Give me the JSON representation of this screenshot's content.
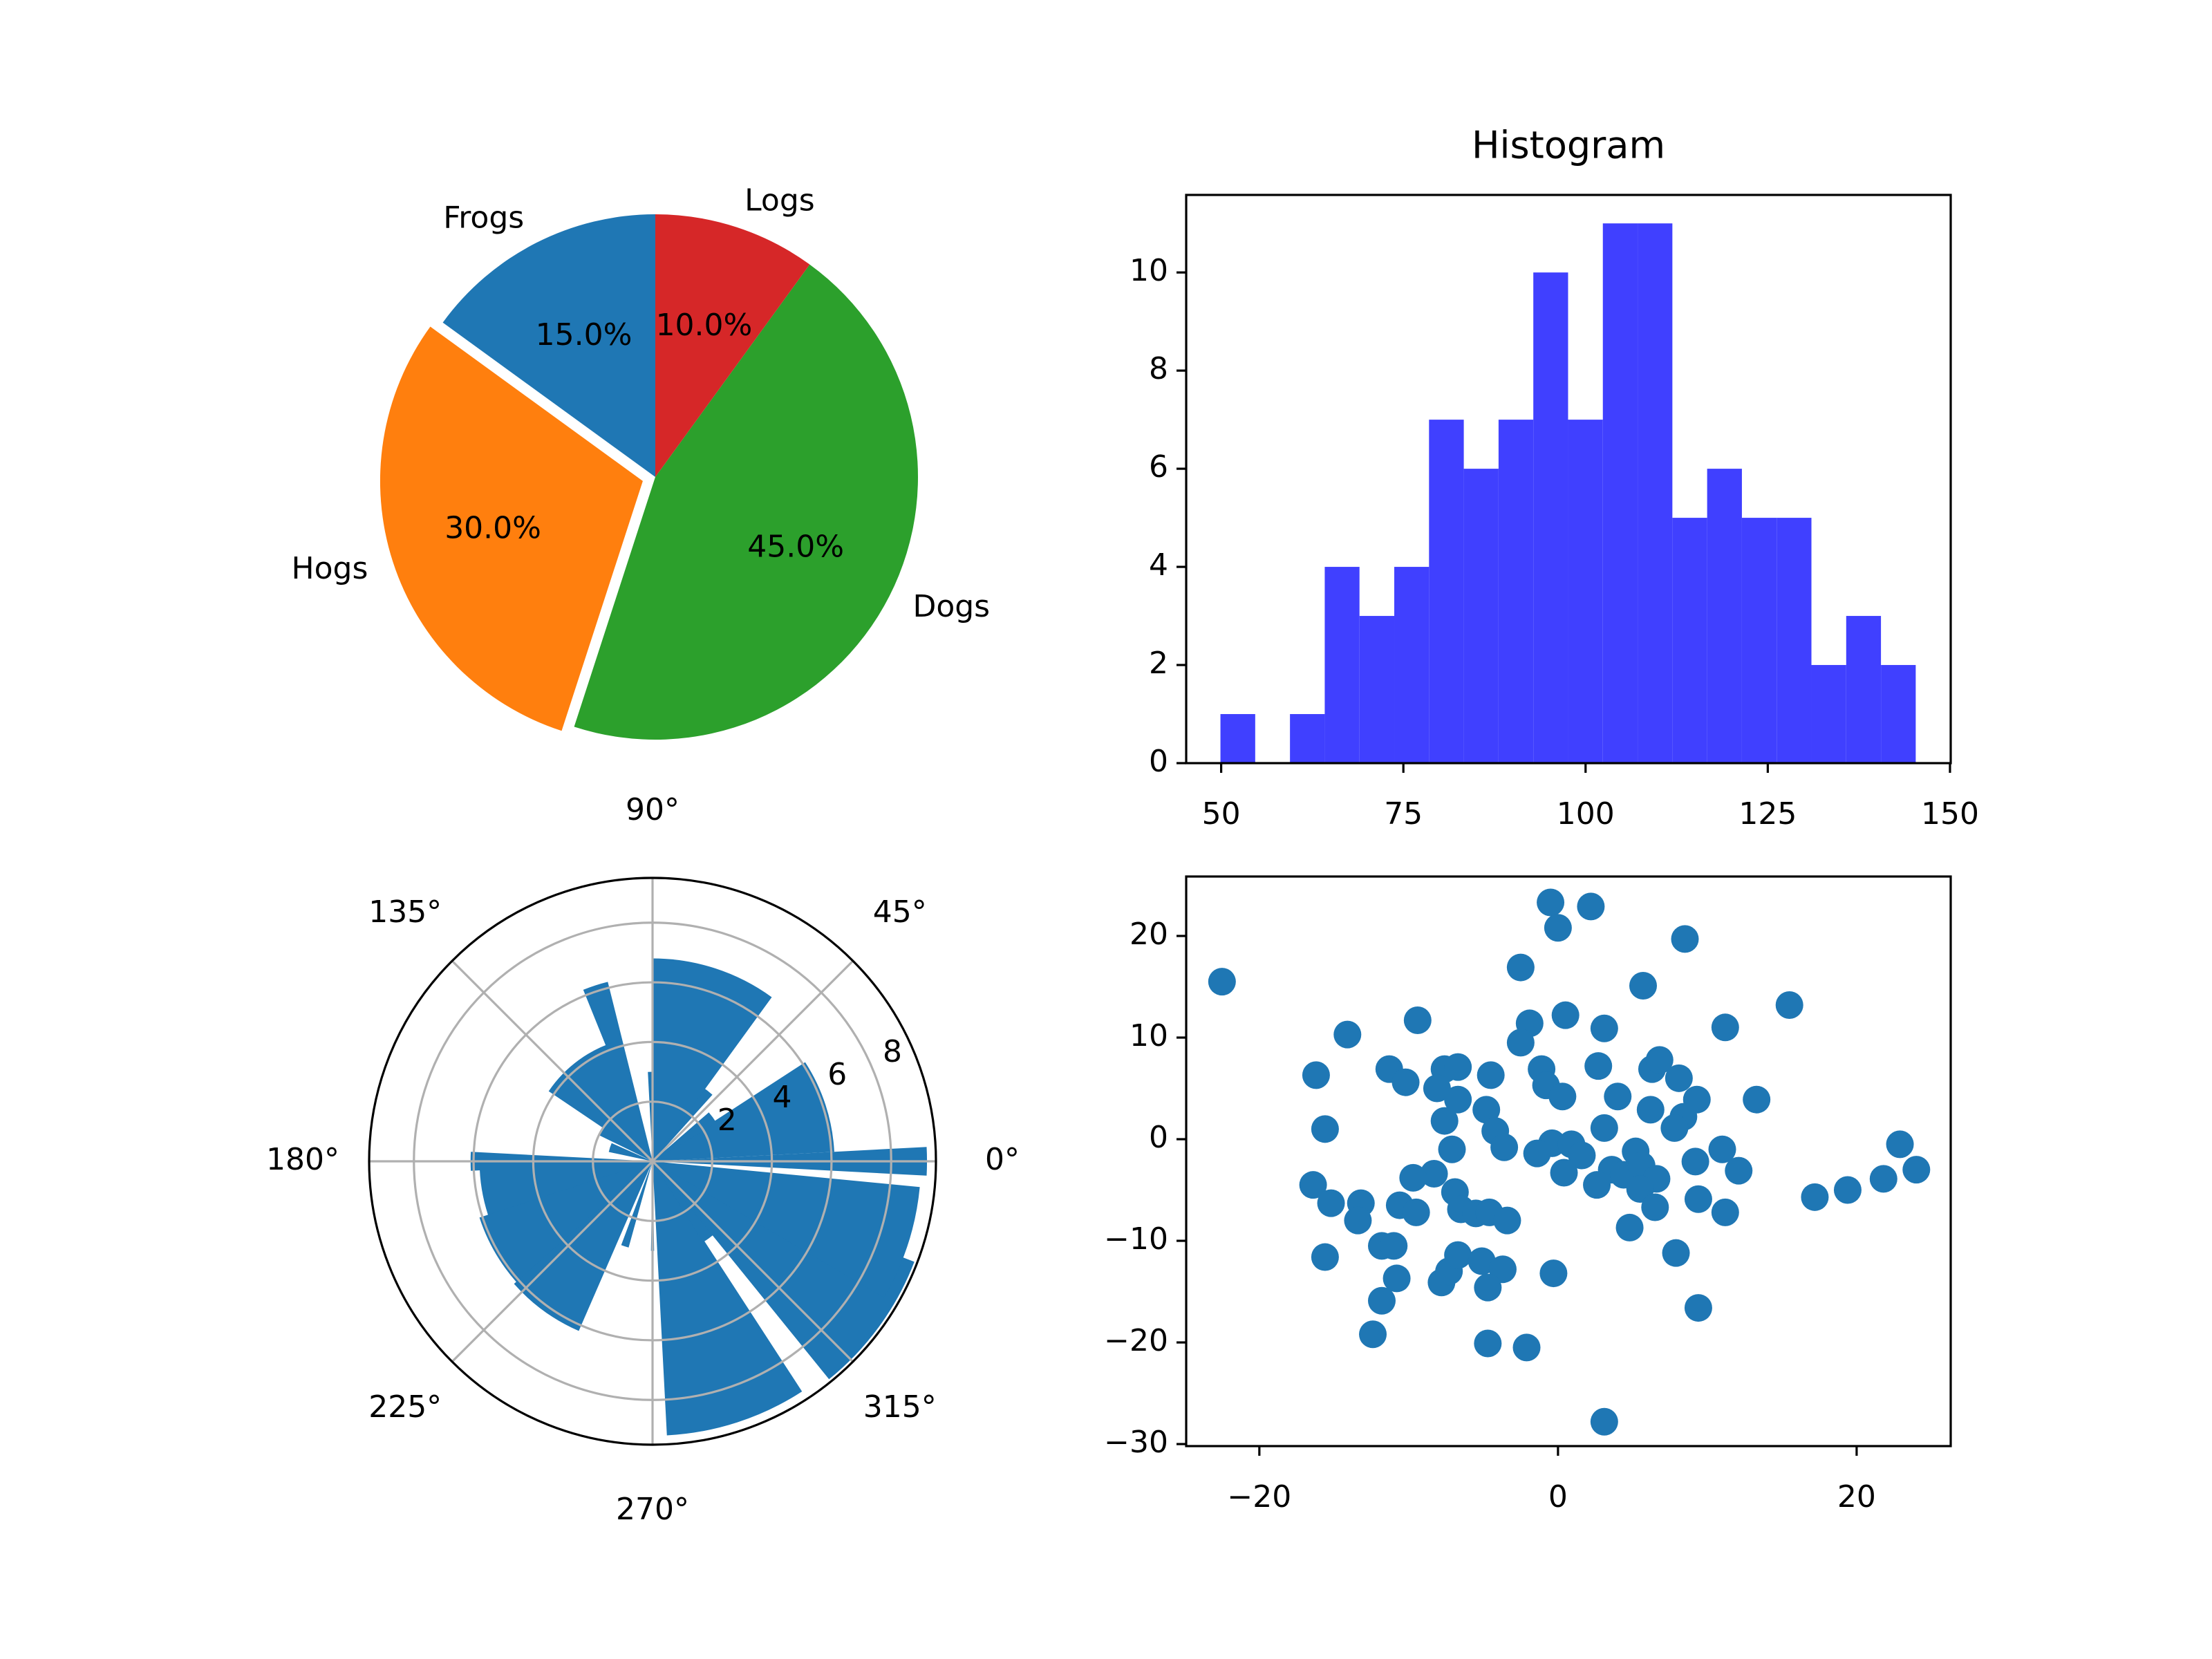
{
  "chart_data": [
    {
      "type": "pie",
      "labels": [
        "Frogs",
        "Hogs",
        "Dogs",
        "Logs"
      ],
      "values": [
        15,
        30,
        45,
        10
      ],
      "value_labels": [
        "15.0%",
        "30.0%",
        "45.0%",
        "10.0%"
      ],
      "colors": [
        "#1f77b4",
        "#ff7f0e",
        "#2ca02c",
        "#d62728"
      ],
      "explode": [
        0,
        0.05,
        0,
        0
      ],
      "start_angle": 90
    },
    {
      "type": "histogram",
      "title": "Histogram",
      "bins": [
        49.9,
        54.67,
        59.44,
        64.21,
        68.98,
        73.75,
        78.52,
        83.29,
        88.06,
        92.83,
        97.6,
        102.37,
        107.14,
        111.91,
        116.68,
        121.45,
        126.22,
        130.99,
        135.76,
        140.53,
        145.3
      ],
      "counts": [
        1,
        0,
        1,
        4,
        3,
        4,
        7,
        6,
        7,
        10,
        7,
        11,
        11,
        5,
        6,
        5,
        5,
        2,
        3,
        2
      ],
      "color": "#4040ff",
      "xlim": [
        45.2,
        150.1
      ],
      "ylim": [
        0,
        11.58
      ],
      "xticks": [
        50,
        75,
        100,
        125,
        150
      ],
      "yticks": [
        0,
        2,
        4,
        6,
        8,
        10
      ]
    },
    {
      "type": "polar-bar",
      "theta": [
        0,
        18,
        36,
        54,
        72,
        90,
        108,
        126,
        144,
        162,
        180,
        198,
        216,
        234,
        252,
        270,
        288,
        306,
        324,
        342
      ],
      "radii": [
        9.2,
        6.1,
        2.5,
        3.0,
        6.8,
        3.0,
        6.2,
        4.2,
        2.0,
        1.5,
        6.1,
        5.8,
        6.1,
        6.2,
        3.0,
        3.0,
        9.2,
        3.2,
        9.4,
        9.0
      ],
      "widths": [
        6,
        30,
        10,
        12,
        36,
        6,
        8,
        40,
        20,
        12,
        6,
        35,
        36,
        25,
        5,
        2,
        30,
        8,
        30,
        25
      ],
      "color": "#1f77b4",
      "rlim": [
        0,
        9.5
      ],
      "rticks": [
        2,
        4,
        6,
        8
      ],
      "thetaticks": [
        {
          "value": 0,
          "label": "0°"
        },
        {
          "value": 45,
          "label": "45°"
        },
        {
          "value": 90,
          "label": "90°"
        },
        {
          "value": 135,
          "label": "135°"
        },
        {
          "value": 180,
          "label": "180°"
        },
        {
          "value": 225,
          "label": "225°"
        },
        {
          "value": 270,
          "label": "270°"
        },
        {
          "value": 315,
          "label": "315°"
        }
      ],
      "grid": true
    },
    {
      "type": "scatter",
      "x": [
        -22.5,
        -0.5,
        2.2,
        0,
        8.5,
        -2.5,
        5.7,
        15.5,
        -14.1,
        -9.4,
        -1.9,
        0.5,
        3.1,
        11.2,
        -2.5,
        -11.3,
        -10.2,
        -16.2,
        -7.6,
        -6.7,
        -8.1,
        -6.7,
        -4.5,
        -1.1,
        2.7,
        6.3,
        6.8,
        8.1,
        -0.8,
        0.3,
        4.0,
        9.3,
        13.3,
        6.2,
        8.4,
        -4.8,
        -7.6,
        -4.2,
        7.8,
        3.1,
        -15.6,
        -3.6,
        -7.1,
        -0.4,
        0.9,
        -1.4,
        1.6,
        5.2,
        11.0,
        9.2,
        12.1,
        0.4,
        3.6,
        4.4,
        5.6,
        6.6,
        5.5,
        2.6,
        -8.3,
        -9.7,
        -16.4,
        -15.2,
        -13.2,
        -10.6,
        -9.5,
        -6.9,
        -6.5,
        -5.5,
        -4.6,
        -3.4,
        -13.4,
        9.4,
        11.2,
        6.5,
        17.2,
        19.4,
        21.8,
        22.9,
        24.0,
        4.8,
        7.9,
        -15.6,
        -11.8,
        -11.0,
        -10.8,
        -11.8,
        -7.8,
        -7.3,
        -6.7,
        -5.1,
        -3.7,
        -4.7,
        -0.3,
        9.4,
        -12.4,
        -4.7,
        -2.1,
        3.1
      ],
      "y": [
        15.5,
        23.3,
        22.9,
        20.8,
        19.7,
        16.9,
        15.1,
        13.2,
        10.3,
        11.7,
        11.4,
        12.2,
        10.9,
        11.0,
        9.5,
        6.9,
        5.6,
        6.3,
        6.9,
        7.1,
        5.0,
        3.9,
        6.3,
        6.9,
        7.2,
        6.9,
        7.8,
        6.0,
        5.3,
        4.2,
        4.2,
        3.9,
        3.9,
        2.9,
        2.2,
        2.9,
        1.8,
        0.8,
        1.1,
        1.1,
        1.0,
        -0.8,
        -1.0,
        -0.4,
        -0.5,
        -1.4,
        -1.6,
        -1.2,
        -1.0,
        -2.2,
        -3.1,
        -3.3,
        -3.0,
        -3.5,
        -2.6,
        -3.9,
        -4.9,
        -4.5,
        -3.4,
        -3.8,
        -4.5,
        -6.3,
        -6.3,
        -6.5,
        -7.2,
        -5.2,
        -6.9,
        -7.3,
        -7.2,
        -8.0,
        -8.0,
        -5.9,
        -7.2,
        -6.7,
        -5.7,
        -5.0,
        -3.9,
        -0.5,
        -3.0,
        -8.7,
        -11.2,
        -11.6,
        -10.5,
        -10.5,
        -13.7,
        -15.9,
        -14.1,
        -13.0,
        -11.4,
        -12.0,
        -12.8,
        -14.6,
        -13.2,
        -16.6,
        -19.2,
        -20.1,
        -20.5,
        -27.8
      ],
      "color": "#1f77b4",
      "xlim": [
        -24.9,
        26.3
      ],
      "ylim": [
        -30.2,
        25.85
      ],
      "xticks": [
        {
          "value": -20,
          "label": "−20"
        },
        0,
        20
      ],
      "yticks": [
        {
          "value": -30,
          "label": "−30"
        },
        {
          "value": -20,
          "label": "−20"
        },
        {
          "value": -10,
          "label": "−10"
        },
        0,
        10,
        20
      ]
    }
  ]
}
